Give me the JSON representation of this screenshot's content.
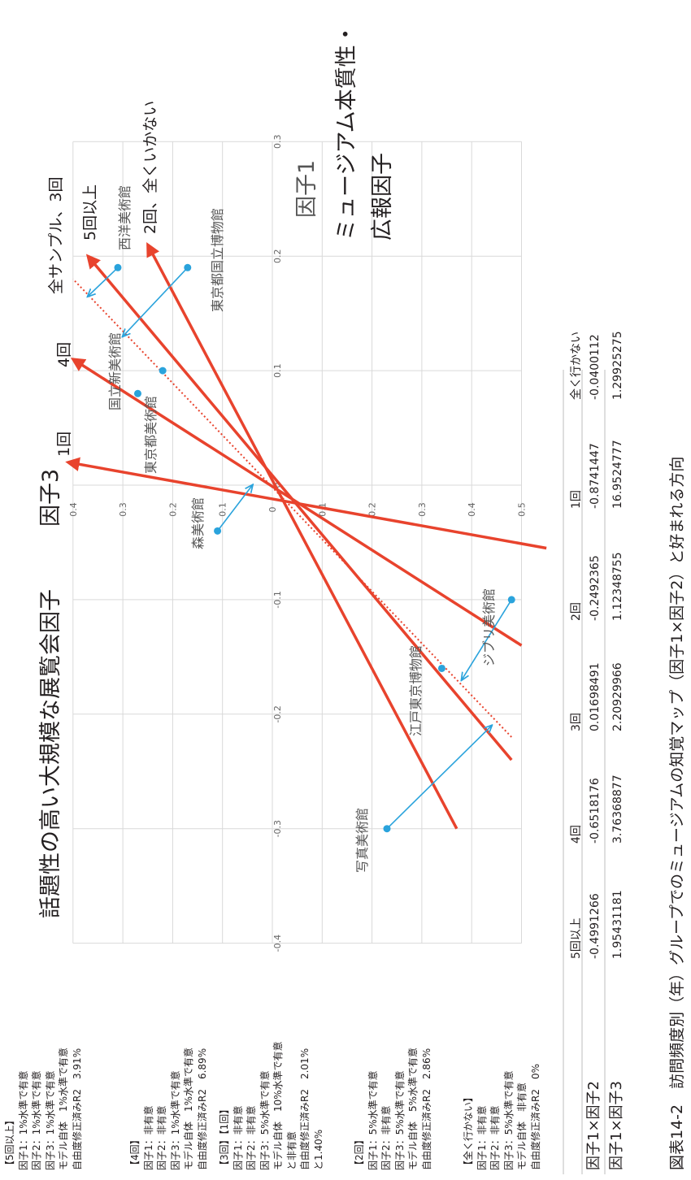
{
  "chart_data": {
    "type": "scatter",
    "axes": {
      "factor1": {
        "label": "因子1",
        "range": [
          -0.4,
          0.3
        ],
        "ticks": [
          "-0.4",
          "-0.3",
          "-0.2",
          "-0.1",
          "0",
          "0.1",
          "0.2",
          "0.3"
        ]
      },
      "factor3": {
        "label": "因子3",
        "range": [
          -0.5,
          0.4
        ],
        "ticks": [
          "0.4",
          "0.3",
          "0.2",
          "0.1",
          "0",
          "0.1",
          "0.2",
          "0.3",
          "0.4",
          "0.5"
        ]
      }
    },
    "grid": true,
    "axis_titles": {
      "factor1_meaning": [
        "ミュージアム本質性・",
        "広報因子"
      ],
      "factor3_meaning": "話題性の高い大規模な展覧会因子"
    },
    "points": [
      {
        "name": "西洋美術館",
        "f1": 0.19,
        "f3": 0.31,
        "moved_to": [
          0.165,
          0.37
        ]
      },
      {
        "name": "東京都国立博物館",
        "f1": 0.19,
        "f3": 0.17,
        "moved_to": [
          0.13,
          0.3
        ]
      },
      {
        "name": "国立新美術館",
        "f1": 0.1,
        "f3": 0.22
      },
      {
        "name": "東京都美術館",
        "f1": 0.08,
        "f3": 0.27
      },
      {
        "name": "森美術館",
        "f1": -0.04,
        "f3": 0.11,
        "moved_to": [
          0.0,
          0.04
        ]
      },
      {
        "name": "ジブリ美術館",
        "f1": -0.1,
        "f3": -0.48,
        "moved_to": [
          -0.17,
          -0.38
        ]
      },
      {
        "name": "江戸東京博物館",
        "f1": -0.16,
        "f3": -0.34
      },
      {
        "name": "写真美術館",
        "f1": -0.3,
        "f3": -0.23,
        "moved_to": [
          -0.21,
          -0.44
        ]
      }
    ],
    "preference_vectors": [
      {
        "label": "1回",
        "f1": 0.02,
        "f3": 0.41,
        "style": "solid"
      },
      {
        "label": "4回",
        "f1": 0.11,
        "f3": 0.4,
        "style": "solid"
      },
      {
        "label": "全サンプル、3回",
        "f1": 0.18,
        "f3": 0.4,
        "style": "dotted"
      },
      {
        "label": "5回以上",
        "f1": 0.2,
        "f3": 0.37,
        "style": "solid"
      },
      {
        "label": "2回、全くいかない",
        "f1": 0.21,
        "f3": 0.25,
        "style": "solid"
      }
    ]
  },
  "table": {
    "columns": [
      "5回以上",
      "4回",
      "3回",
      "2回",
      "1回",
      "全く行かない"
    ],
    "rows": [
      {
        "label": "因子1×因子2",
        "values": [
          "-0.4991266",
          "-0.6518176",
          "0.01698491",
          "-0.2492365",
          "-0.8741447",
          "-0.0400112"
        ]
      },
      {
        "label": "因子1×因子3",
        "values": [
          "1.95431181",
          "3.76368877",
          "2.20929966",
          "1.12348755",
          "16.9524777",
          "1.29925275"
        ]
      }
    ]
  },
  "notes": [
    [
      "【5回以上】",
      "因子1：1%水準で有意",
      "因子2：1%水準で有意",
      "因子3：1%水準で有意",
      "モデル自体　1%水準で有意",
      "自由度修正済みR2　3.91%"
    ],
    [
      "【4回】",
      "因子1：非有意",
      "因子2：非有意",
      "因子3：1%水準で有意",
      "モデル自体　1%水準で有意",
      "自由度修正済みR2　6.89%"
    ],
    [
      "【3回】【1回】",
      "因子1：非有意",
      "因子2：非有意",
      "因子3：5%水準で有意",
      "モデル自体　10%水準で有意",
      "と非有意",
      "自由度修正済みR2　2.01%",
      "と1.40%"
    ],
    [
      "【2回】",
      "因子1：5%水準で有意",
      "因子2：非有意",
      "因子3：5%水準で有意",
      "モデル自体　5%水準で有意",
      "自由度修正済みR2　2.86%"
    ],
    [
      "【全く行かない】",
      "因子1：非有意",
      "因子2：非有意",
      "因子3：5%水準で有意",
      "モデル自体　非有意",
      "自由度修正済みR2　0%"
    ]
  ],
  "caption": "図表14-2　訪問頻度別（年）グループでのミュージアムの知覚マップ（因子1×因子2）と好まれる方向",
  "colors": {
    "vector": "#e8432d",
    "point": "#2aa3dc",
    "arrow": "#2aa3dc",
    "grid": "#d9d9d9",
    "text": "#231f20",
    "tick": "#666666"
  }
}
